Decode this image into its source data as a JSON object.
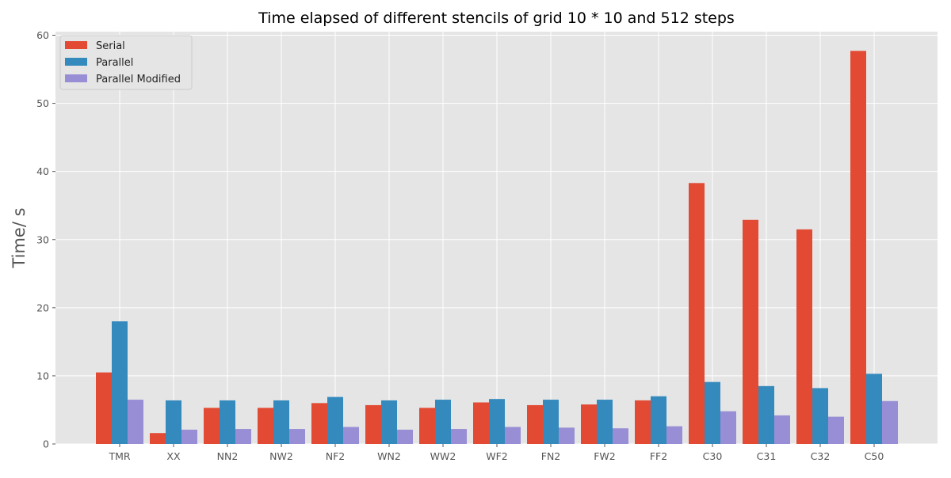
{
  "chart_data": {
    "type": "bar",
    "title": "Time elapsed of different stencils of grid 10 * 10 and 512 steps",
    "xlabel": "",
    "ylabel": "Time/ s",
    "ylim": [
      0,
      60
    ],
    "yticks": [
      0,
      10,
      20,
      30,
      40,
      50,
      60
    ],
    "grid": true,
    "legend_position": "top-left",
    "categories": [
      "TMR",
      "XX",
      "NN2",
      "NW2",
      "NF2",
      "WN2",
      "WW2",
      "WF2",
      "FN2",
      "FW2",
      "FF2",
      "C30",
      "C31",
      "C32",
      "C50"
    ],
    "series": [
      {
        "name": "Serial",
        "color": "#e24a33",
        "values": [
          10.5,
          1.6,
          5.3,
          5.3,
          6.0,
          5.7,
          5.3,
          6.1,
          5.7,
          5.8,
          6.4,
          38.3,
          32.9,
          31.5,
          57.7
        ]
      },
      {
        "name": "Parallel",
        "color": "#348abd",
        "values": [
          18.0,
          6.4,
          6.4,
          6.4,
          6.9,
          6.4,
          6.5,
          6.6,
          6.5,
          6.5,
          7.0,
          9.1,
          8.5,
          8.2,
          10.3
        ]
      },
      {
        "name": "Parallel Modified",
        "color": "#988ed5",
        "values": [
          6.5,
          2.1,
          2.2,
          2.2,
          2.5,
          2.1,
          2.2,
          2.5,
          2.4,
          2.3,
          2.6,
          4.8,
          4.2,
          4.0,
          6.3
        ]
      }
    ],
    "style": {
      "plot_background": "#e5e5e5",
      "grid_color": "#ffffff",
      "text_color": "#555555",
      "title_color": "#000000"
    }
  }
}
